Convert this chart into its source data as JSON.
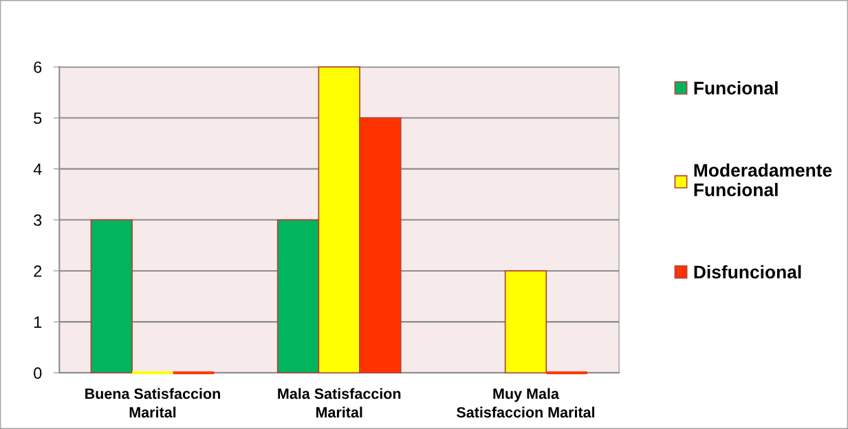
{
  "chart_data": {
    "type": "bar",
    "categories": [
      "Buena Satisfaccion\nMarital",
      "Mala Satisfaccion\nMarital",
      "Muy Mala\nSatisfaccion Marital"
    ],
    "series": [
      {
        "name": "Funcional",
        "color": "#00b55e",
        "values": [
          3,
          3,
          null
        ]
      },
      {
        "name": "Moderadamente\nFuncional",
        "color": "#ffff00",
        "values": [
          0,
          6,
          2
        ]
      },
      {
        "name": "Disfuncional",
        "color": "#ff3300",
        "values": [
          0,
          5,
          0
        ]
      }
    ],
    "ylim": [
      0,
      6
    ],
    "yticks": [
      0,
      1,
      2,
      3,
      4,
      5,
      6
    ],
    "grid": "y",
    "legend": "right"
  }
}
